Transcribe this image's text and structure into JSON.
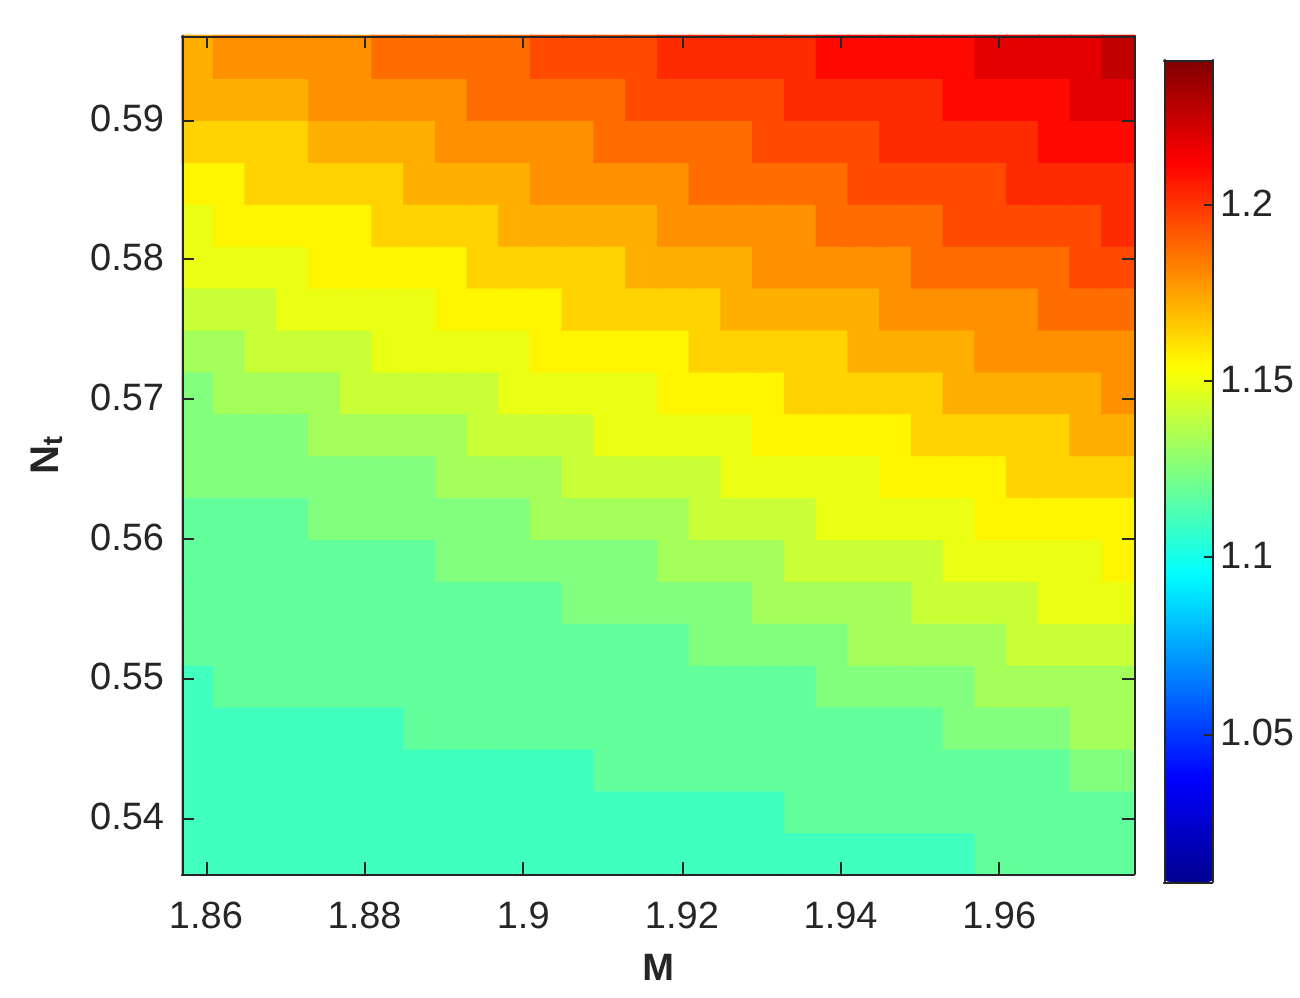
{
  "chart_data": {
    "type": "scatter",
    "xlabel": "M",
    "ylabel": "N$_{t}$",
    "x": [
      1.859,
      1.863,
      1.867,
      1.871,
      1.875,
      1.879,
      1.883,
      1.887,
      1.891,
      1.895,
      1.899,
      1.903,
      1.907,
      1.911,
      1.915,
      1.919,
      1.923,
      1.927,
      1.931,
      1.935,
      1.939,
      1.943,
      1.947,
      1.951,
      1.955,
      1.959,
      1.963,
      1.967,
      1.971,
      1.975,
      1.859,
      1.863,
      1.867,
      1.871,
      1.875,
      1.879,
      1.883,
      1.887,
      1.891,
      1.895,
      1.899,
      1.903,
      1.907,
      1.911,
      1.915,
      1.919,
      1.923,
      1.927,
      1.931,
      1.935,
      1.939,
      1.943,
      1.947,
      1.951,
      1.955,
      1.959,
      1.963,
      1.967,
      1.971,
      1.975,
      1.859,
      1.863,
      1.867,
      1.871,
      1.875,
      1.879,
      1.883,
      1.887,
      1.891,
      1.895,
      1.899,
      1.903,
      1.907,
      1.911,
      1.915,
      1.919,
      1.923,
      1.927,
      1.931,
      1.935,
      1.939,
      1.943,
      1.947,
      1.951,
      1.955,
      1.959,
      1.963,
      1.967,
      1.971,
      1.975,
      1.859,
      1.863,
      1.867,
      1.871,
      1.875,
      1.879,
      1.883,
      1.887,
      1.891,
      1.895,
      1.899,
      1.903,
      1.907,
      1.911,
      1.915,
      1.919,
      1.923,
      1.927,
      1.931,
      1.935,
      1.939,
      1.943,
      1.947,
      1.951,
      1.955,
      1.959,
      1.963,
      1.967,
      1.971,
      1.975,
      1.859,
      1.863,
      1.867,
      1.871,
      1.875,
      1.879,
      1.883,
      1.887,
      1.891,
      1.895,
      1.899,
      1.903,
      1.907,
      1.911,
      1.915,
      1.919,
      1.923,
      1.927,
      1.931,
      1.935,
      1.939,
      1.943,
      1.947,
      1.951,
      1.955,
      1.959,
      1.963,
      1.967,
      1.971,
      1.975,
      1.859,
      1.863,
      1.867,
      1.871,
      1.875,
      1.879,
      1.883,
      1.887,
      1.891,
      1.895,
      1.899,
      1.903,
      1.907,
      1.911,
      1.915,
      1.919,
      1.923,
      1.927,
      1.931,
      1.935,
      1.939,
      1.943,
      1.947,
      1.951,
      1.955,
      1.959,
      1.963,
      1.967,
      1.971,
      1.975,
      1.859,
      1.863,
      1.867,
      1.871,
      1.875,
      1.879,
      1.883,
      1.887,
      1.891,
      1.895,
      1.899,
      1.903,
      1.907,
      1.911,
      1.915,
      1.919,
      1.923,
      1.927,
      1.931,
      1.935,
      1.939,
      1.943,
      1.947,
      1.951,
      1.955,
      1.959,
      1.963,
      1.967,
      1.971,
      1.975,
      1.859,
      1.863,
      1.867,
      1.871,
      1.875,
      1.879,
      1.883,
      1.887,
      1.891,
      1.895,
      1.899,
      1.903,
      1.907,
      1.911,
      1.915,
      1.919,
      1.923,
      1.927,
      1.931,
      1.935,
      1.939,
      1.943,
      1.947,
      1.951,
      1.955,
      1.959,
      1.963,
      1.967,
      1.971,
      1.975,
      1.859,
      1.863,
      1.867,
      1.871,
      1.875,
      1.879,
      1.883,
      1.887,
      1.891,
      1.895,
      1.899,
      1.903,
      1.907,
      1.911,
      1.915,
      1.919,
      1.923,
      1.927,
      1.931,
      1.935,
      1.939,
      1.943,
      1.947,
      1.951,
      1.955,
      1.959,
      1.963,
      1.967,
      1.971,
      1.975,
      1.859,
      1.863,
      1.867,
      1.871,
      1.875,
      1.879,
      1.883,
      1.887,
      1.891,
      1.895,
      1.899,
      1.903,
      1.907,
      1.911,
      1.915,
      1.919,
      1.923,
      1.927,
      1.931,
      1.935,
      1.939,
      1.943,
      1.947,
      1.951,
      1.955,
      1.959,
      1.963,
      1.967,
      1.971,
      1.975,
      1.859,
      1.863,
      1.867,
      1.871,
      1.875,
      1.879,
      1.883,
      1.887,
      1.891,
      1.895,
      1.899,
      1.903,
      1.907,
      1.911,
      1.915,
      1.919,
      1.923,
      1.927,
      1.931,
      1.935,
      1.939,
      1.943,
      1.947,
      1.951,
      1.955,
      1.959,
      1.963,
      1.967,
      1.971,
      1.975,
      1.859,
      1.863,
      1.867,
      1.871,
      1.875,
      1.879,
      1.883,
      1.887,
      1.891,
      1.895,
      1.899,
      1.903,
      1.907,
      1.911,
      1.915,
      1.919,
      1.923,
      1.927,
      1.931,
      1.935,
      1.939,
      1.943,
      1.947,
      1.951,
      1.955,
      1.959,
      1.963,
      1.967,
      1.971,
      1.975,
      1.859,
      1.863,
      1.867,
      1.871,
      1.875,
      1.879,
      1.883,
      1.887,
      1.891,
      1.895,
      1.899,
      1.903,
      1.907,
      1.911,
      1.915,
      1.919,
      1.923,
      1.927,
      1.931,
      1.935,
      1.939,
      1.943,
      1.947,
      1.951,
      1.955,
      1.959,
      1.963,
      1.967,
      1.971,
      1.975,
      1.859,
      1.863,
      1.867,
      1.871,
      1.875,
      1.879,
      1.883,
      1.887,
      1.891,
      1.895,
      1.899,
      1.903,
      1.907,
      1.911,
      1.915,
      1.919,
      1.923,
      1.927,
      1.931,
      1.935,
      1.939,
      1.943,
      1.947,
      1.951,
      1.955,
      1.959,
      1.963,
      1.967,
      1.971,
      1.975,
      1.859,
      1.863,
      1.867,
      1.871,
      1.875,
      1.879,
      1.883,
      1.887,
      1.891,
      1.895,
      1.899,
      1.903,
      1.907,
      1.911,
      1.915,
      1.919,
      1.923,
      1.927,
      1.931,
      1.935,
      1.939,
      1.943,
      1.947,
      1.951,
      1.955,
      1.959,
      1.963,
      1.967,
      1.971,
      1.975,
      1.859,
      1.863,
      1.867,
      1.871,
      1.875,
      1.879,
      1.883,
      1.887,
      1.891,
      1.895,
      1.899,
      1.903,
      1.907,
      1.911,
      1.915,
      1.919,
      1.923,
      1.927,
      1.931,
      1.935,
      1.939,
      1.943,
      1.947,
      1.951,
      1.955,
      1.959,
      1.963,
      1.967,
      1.971,
      1.975,
      1.859,
      1.863,
      1.867,
      1.871,
      1.875,
      1.879,
      1.883,
      1.887,
      1.891,
      1.895,
      1.899,
      1.903,
      1.907,
      1.911,
      1.915,
      1.919,
      1.923,
      1.927,
      1.931,
      1.935,
      1.939,
      1.943,
      1.947,
      1.951,
      1.955,
      1.959,
      1.963,
      1.967,
      1.971,
      1.975,
      1.859,
      1.863,
      1.867,
      1.871,
      1.875,
      1.879,
      1.883,
      1.887,
      1.891,
      1.895,
      1.899,
      1.903,
      1.907,
      1.911,
      1.915,
      1.919,
      1.923,
      1.927,
      1.931,
      1.935,
      1.939,
      1.943,
      1.947,
      1.951,
      1.955,
      1.959,
      1.963,
      1.967,
      1.971,
      1.975,
      1.859,
      1.863,
      1.867,
      1.871,
      1.875,
      1.879,
      1.883,
      1.887,
      1.891,
      1.895,
      1.899,
      1.903,
      1.907,
      1.911,
      1.915,
      1.919,
      1.923,
      1.927,
      1.931,
      1.935,
      1.939,
      1.943,
      1.947,
      1.951,
      1.955,
      1.959,
      1.963,
      1.967,
      1.971,
      1.975,
      1.859,
      1.863,
      1.867,
      1.871,
      1.875,
      1.879,
      1.883,
      1.887,
      1.891,
      1.895,
      1.899,
      1.903,
      1.907,
      1.911,
      1.915,
      1.919,
      1.923,
      1.927,
      1.931,
      1.935,
      1.939,
      1.943,
      1.947,
      1.951,
      1.955,
      1.959,
      1.963,
      1.967,
      1.971,
      1.975
    ],
    "values": [
      0.5375,
      0.5375,
      0.5375,
      0.5375,
      0.5375,
      0.5375,
      0.5375,
      0.5375,
      0.5375,
      0.5375,
      0.5375,
      0.5375,
      0.5375,
      0.5375,
      0.5375,
      0.5375,
      0.5375,
      0.5375,
      0.5375,
      0.5375,
      0.5375,
      0.5375,
      0.5375,
      0.5375,
      0.5375,
      0.5375,
      0.5375,
      0.5375,
      0.5375,
      0.5375,
      0.5405,
      0.5405,
      0.5405,
      0.5405,
      0.5405,
      0.5405,
      0.5405,
      0.5405,
      0.5405,
      0.5405,
      0.5405,
      0.5405,
      0.5405,
      0.5405,
      0.5405,
      0.5405,
      0.5405,
      0.5405,
      0.5405,
      0.5405,
      0.5405,
      0.5405,
      0.5405,
      0.5405,
      0.5405,
      0.5405,
      0.5405,
      0.5405,
      0.5405,
      0.5405,
      0.5435,
      0.5435,
      0.5435,
      0.5435,
      0.5435,
      0.5435,
      0.5435,
      0.5435,
      0.5435,
      0.5435,
      0.5435,
      0.5435,
      0.5435,
      0.5435,
      0.5435,
      0.5435,
      0.5435,
      0.5435,
      0.5435,
      0.5435,
      0.5435,
      0.5435,
      0.5435,
      0.5435,
      0.5435,
      0.5435,
      0.5435,
      0.5435,
      0.5435,
      0.5435,
      0.5465,
      0.5465,
      0.5465,
      0.5465,
      0.5465,
      0.5465,
      0.5465,
      0.5465,
      0.5465,
      0.5465,
      0.5465,
      0.5465,
      0.5465,
      0.5465,
      0.5465,
      0.5465,
      0.5465,
      0.5465,
      0.5465,
      0.5465,
      0.5465,
      0.5465,
      0.5465,
      0.5465,
      0.5465,
      0.5465,
      0.5465,
      0.5465,
      0.5465,
      0.5465,
      0.5495,
      0.5495,
      0.5495,
      0.5495,
      0.5495,
      0.5495,
      0.5495,
      0.5495,
      0.5495,
      0.5495,
      0.5495,
      0.5495,
      0.5495,
      0.5495,
      0.5495,
      0.5495,
      0.5495,
      0.5495,
      0.5495,
      0.5495,
      0.5495,
      0.5495,
      0.5495,
      0.5495,
      0.5495,
      0.5495,
      0.5495,
      0.5495,
      0.5495,
      0.5495,
      0.5525,
      0.5525,
      0.5525,
      0.5525,
      0.5525,
      0.5525,
      0.5525,
      0.5525,
      0.5525,
      0.5525,
      0.5525,
      0.5525,
      0.5525,
      0.5525,
      0.5525,
      0.5525,
      0.5525,
      0.5525,
      0.5525,
      0.5525,
      0.5525,
      0.5525,
      0.5525,
      0.5525,
      0.5525,
      0.5525,
      0.5525,
      0.5525,
      0.5525,
      0.5525,
      0.5555,
      0.5555,
      0.5555,
      0.5555,
      0.5555,
      0.5555,
      0.5555,
      0.5555,
      0.5555,
      0.5555,
      0.5555,
      0.5555,
      0.5555,
      0.5555,
      0.5555,
      0.5555,
      0.5555,
      0.5555,
      0.5555,
      0.5555,
      0.5555,
      0.5555,
      0.5555,
      0.5555,
      0.5555,
      0.5555,
      0.5555,
      0.5555,
      0.5555,
      0.5555,
      0.5585,
      0.5585,
      0.5585,
      0.5585,
      0.5585,
      0.5585,
      0.5585,
      0.5585,
      0.5585,
      0.5585,
      0.5585,
      0.5585,
      0.5585,
      0.5585,
      0.5585,
      0.5585,
      0.5585,
      0.5585,
      0.5585,
      0.5585,
      0.5585,
      0.5585,
      0.5585,
      0.5585,
      0.5585,
      0.5585,
      0.5585,
      0.5585,
      0.5585,
      0.5585,
      0.5615,
      0.5615,
      0.5615,
      0.5615,
      0.5615,
      0.5615,
      0.5615,
      0.5615,
      0.5615,
      0.5615,
      0.5615,
      0.5615,
      0.5615,
      0.5615,
      0.5615,
      0.5615,
      0.5615,
      0.5615,
      0.5615,
      0.5615,
      0.5615,
      0.5615,
      0.5615,
      0.5615,
      0.5615,
      0.5615,
      0.5615,
      0.5615,
      0.5615,
      0.5615,
      0.5645,
      0.5645,
      0.5645,
      0.5645,
      0.5645,
      0.5645,
      0.5645,
      0.5645,
      0.5645,
      0.5645,
      0.5645,
      0.5645,
      0.5645,
      0.5645,
      0.5645,
      0.5645,
      0.5645,
      0.5645,
      0.5645,
      0.5645,
      0.5645,
      0.5645,
      0.5645,
      0.5645,
      0.5645,
      0.5645,
      0.5645,
      0.5645,
      0.5645,
      0.5645,
      0.5675,
      0.5675,
      0.5675,
      0.5675,
      0.5675,
      0.5675,
      0.5675,
      0.5675,
      0.5675,
      0.5675,
      0.5675,
      0.5675,
      0.5675,
      0.5675,
      0.5675,
      0.5675,
      0.5675,
      0.5675,
      0.5675,
      0.5675,
      0.5675,
      0.5675,
      0.5675,
      0.5675,
      0.5675,
      0.5675,
      0.5675,
      0.5675,
      0.5675,
      0.5675,
      0.5705,
      0.5705,
      0.5705,
      0.5705,
      0.5705,
      0.5705,
      0.5705,
      0.5705,
      0.5705,
      0.5705,
      0.5705,
      0.5705,
      0.5705,
      0.5705,
      0.5705,
      0.5705,
      0.5705,
      0.5705,
      0.5705,
      0.5705,
      0.5705,
      0.5705,
      0.5705,
      0.5705,
      0.5705,
      0.5705,
      0.5705,
      0.5705,
      0.5705,
      0.5705,
      0.5735,
      0.5735,
      0.5735,
      0.5735,
      0.5735,
      0.5735,
      0.5735,
      0.5735,
      0.5735,
      0.5735,
      0.5735,
      0.5735,
      0.5735,
      0.5735,
      0.5735,
      0.5735,
      0.5735,
      0.5735,
      0.5735,
      0.5735,
      0.5735,
      0.5735,
      0.5735,
      0.5735,
      0.5735,
      0.5735,
      0.5735,
      0.5735,
      0.5735,
      0.5735,
      0.5765,
      0.5765,
      0.5765,
      0.5765,
      0.5765,
      0.5765,
      0.5765,
      0.5765,
      0.5765,
      0.5765,
      0.5765,
      0.5765,
      0.5765,
      0.5765,
      0.5765,
      0.5765,
      0.5765,
      0.5765,
      0.5765,
      0.5765,
      0.5765,
      0.5765,
      0.5765,
      0.5765,
      0.5765,
      0.5765,
      0.5765,
      0.5765,
      0.5765,
      0.5765,
      0.5795,
      0.5795,
      0.5795,
      0.5795,
      0.5795,
      0.5795,
      0.5795,
      0.5795,
      0.5795,
      0.5795,
      0.5795,
      0.5795,
      0.5795,
      0.5795,
      0.5795,
      0.5795,
      0.5795,
      0.5795,
      0.5795,
      0.5795,
      0.5795,
      0.5795,
      0.5795,
      0.5795,
      0.5795,
      0.5795,
      0.5795,
      0.5795,
      0.5795,
      0.5795,
      0.5825,
      0.5825,
      0.5825,
      0.5825,
      0.5825,
      0.5825,
      0.5825,
      0.5825,
      0.5825,
      0.5825,
      0.5825,
      0.5825,
      0.5825,
      0.5825,
      0.5825,
      0.5825,
      0.5825,
      0.5825,
      0.5825,
      0.5825,
      0.5825,
      0.5825,
      0.5825,
      0.5825,
      0.5825,
      0.5825,
      0.5825,
      0.5825,
      0.5825,
      0.5825,
      0.5855,
      0.5855,
      0.5855,
      0.5855,
      0.5855,
      0.5855,
      0.5855,
      0.5855,
      0.5855,
      0.5855,
      0.5855,
      0.5855,
      0.5855,
      0.5855,
      0.5855,
      0.5855,
      0.5855,
      0.5855,
      0.5855,
      0.5855,
      0.5855,
      0.5855,
      0.5855,
      0.5855,
      0.5855,
      0.5855,
      0.5855,
      0.5855,
      0.5855,
      0.5855,
      0.5885,
      0.5885,
      0.5885,
      0.5885,
      0.5885,
      0.5885,
      0.5885,
      0.5885,
      0.5885,
      0.5885,
      0.5885,
      0.5885,
      0.5885,
      0.5885,
      0.5885,
      0.5885,
      0.5885,
      0.5885,
      0.5885,
      0.5885,
      0.5885,
      0.5885,
      0.5885,
      0.5885,
      0.5885,
      0.5885,
      0.5885,
      0.5885,
      0.5885,
      0.5885,
      0.5915,
      0.5915,
      0.5915,
      0.5915,
      0.5915,
      0.5915,
      0.5915,
      0.5915,
      0.5915,
      0.5915,
      0.5915,
      0.5915,
      0.5915,
      0.5915,
      0.5915,
      0.5915,
      0.5915,
      0.5915,
      0.5915,
      0.5915,
      0.5915,
      0.5915,
      0.5915,
      0.5915,
      0.5915,
      0.5915,
      0.5915,
      0.5915,
      0.5915,
      0.5915,
      0.5945,
      0.5945,
      0.5945,
      0.5945,
      0.5945,
      0.5945,
      0.5945,
      0.5945,
      0.5945,
      0.5945,
      0.5945,
      0.5945,
      0.5945,
      0.5945,
      0.5945,
      0.5945,
      0.5945,
      0.5945,
      0.5945,
      0.5945,
      0.5945,
      0.5945,
      0.5945,
      0.5945,
      0.5945,
      0.5945,
      0.5945,
      0.5945,
      0.5945,
      0.5945
    ],
    "cvalues": [
      1.11,
      1.11,
      1.11,
      1.11,
      1.11,
      1.11,
      1.11,
      1.11,
      1.11,
      1.11,
      1.11,
      1.11,
      1.11,
      1.11,
      1.11,
      1.11,
      1.11,
      1.11,
      1.11,
      1.11,
      1.11,
      1.11,
      1.11,
      1.11,
      1.11,
      1.118,
      1.118,
      1.118,
      1.118,
      1.118,
      1.11,
      1.11,
      1.11,
      1.11,
      1.11,
      1.11,
      1.11,
      1.11,
      1.11,
      1.11,
      1.11,
      1.11,
      1.11,
      1.11,
      1.11,
      1.11,
      1.11,
      1.11,
      1.11,
      1.118,
      1.118,
      1.118,
      1.118,
      1.118,
      1.118,
      1.118,
      1.118,
      1.118,
      1.118,
      1.118,
      1.11,
      1.11,
      1.11,
      1.11,
      1.11,
      1.11,
      1.11,
      1.11,
      1.11,
      1.11,
      1.11,
      1.11,
      1.11,
      1.118,
      1.118,
      1.118,
      1.118,
      1.118,
      1.118,
      1.118,
      1.118,
      1.118,
      1.118,
      1.118,
      1.118,
      1.118,
      1.118,
      1.118,
      1.125,
      1.125,
      1.11,
      1.11,
      1.11,
      1.11,
      1.11,
      1.11,
      1.11,
      1.118,
      1.118,
      1.118,
      1.118,
      1.118,
      1.118,
      1.118,
      1.118,
      1.118,
      1.118,
      1.118,
      1.118,
      1.118,
      1.118,
      1.118,
      1.118,
      1.118,
      1.125,
      1.125,
      1.125,
      1.125,
      1.133,
      1.133,
      1.11,
      1.118,
      1.118,
      1.118,
      1.118,
      1.118,
      1.118,
      1.118,
      1.118,
      1.118,
      1.118,
      1.118,
      1.118,
      1.118,
      1.118,
      1.118,
      1.118,
      1.118,
      1.118,
      1.118,
      1.125,
      1.125,
      1.125,
      1.125,
      1.125,
      1.133,
      1.133,
      1.133,
      1.133,
      1.133,
      1.118,
      1.118,
      1.118,
      1.118,
      1.118,
      1.118,
      1.118,
      1.118,
      1.118,
      1.118,
      1.118,
      1.118,
      1.118,
      1.118,
      1.118,
      1.118,
      1.125,
      1.125,
      1.125,
      1.125,
      1.125,
      1.133,
      1.133,
      1.133,
      1.133,
      1.133,
      1.141,
      1.141,
      1.141,
      1.141,
      1.118,
      1.118,
      1.118,
      1.118,
      1.118,
      1.118,
      1.118,
      1.118,
      1.118,
      1.118,
      1.118,
      1.118,
      1.125,
      1.125,
      1.125,
      1.125,
      1.125,
      1.125,
      1.133,
      1.133,
      1.133,
      1.133,
      1.133,
      1.141,
      1.141,
      1.141,
      1.141,
      1.149,
      1.149,
      1.149,
      1.118,
      1.118,
      1.118,
      1.118,
      1.118,
      1.118,
      1.118,
      1.118,
      1.125,
      1.125,
      1.125,
      1.125,
      1.125,
      1.125,
      1.125,
      1.133,
      1.133,
      1.133,
      1.133,
      1.141,
      1.141,
      1.141,
      1.141,
      1.141,
      1.149,
      1.149,
      1.149,
      1.149,
      1.149,
      1.156,
      1.118,
      1.118,
      1.118,
      1.118,
      1.125,
      1.125,
      1.125,
      1.125,
      1.125,
      1.125,
      1.125,
      1.133,
      1.133,
      1.133,
      1.133,
      1.133,
      1.141,
      1.141,
      1.141,
      1.141,
      1.149,
      1.149,
      1.149,
      1.149,
      1.149,
      1.156,
      1.156,
      1.156,
      1.156,
      1.156,
      1.125,
      1.125,
      1.125,
      1.125,
      1.125,
      1.125,
      1.125,
      1.125,
      1.133,
      1.133,
      1.133,
      1.133,
      1.141,
      1.141,
      1.141,
      1.141,
      1.141,
      1.149,
      1.149,
      1.149,
      1.149,
      1.149,
      1.156,
      1.156,
      1.156,
      1.156,
      1.164,
      1.164,
      1.164,
      1.164,
      1.125,
      1.125,
      1.125,
      1.125,
      1.133,
      1.133,
      1.133,
      1.133,
      1.133,
      1.141,
      1.141,
      1.141,
      1.141,
      1.149,
      1.149,
      1.149,
      1.149,
      1.149,
      1.156,
      1.156,
      1.156,
      1.156,
      1.156,
      1.164,
      1.164,
      1.164,
      1.164,
      1.164,
      1.172,
      1.172,
      1.125,
      1.133,
      1.133,
      1.133,
      1.133,
      1.141,
      1.141,
      1.141,
      1.141,
      1.141,
      1.149,
      1.149,
      1.149,
      1.149,
      1.149,
      1.156,
      1.156,
      1.156,
      1.156,
      1.164,
      1.164,
      1.164,
      1.164,
      1.164,
      1.172,
      1.172,
      1.172,
      1.172,
      1.172,
      1.179,
      1.133,
      1.133,
      1.141,
      1.141,
      1.141,
      1.141,
      1.149,
      1.149,
      1.149,
      1.149,
      1.149,
      1.156,
      1.156,
      1.156,
      1.156,
      1.156,
      1.164,
      1.164,
      1.164,
      1.164,
      1.164,
      1.172,
      1.172,
      1.172,
      1.172,
      1.179,
      1.179,
      1.179,
      1.179,
      1.179,
      1.141,
      1.141,
      1.141,
      1.149,
      1.149,
      1.149,
      1.149,
      1.149,
      1.156,
      1.156,
      1.156,
      1.156,
      1.164,
      1.164,
      1.164,
      1.164,
      1.164,
      1.172,
      1.172,
      1.172,
      1.172,
      1.172,
      1.179,
      1.179,
      1.179,
      1.179,
      1.179,
      1.187,
      1.187,
      1.187,
      1.149,
      1.149,
      1.149,
      1.149,
      1.156,
      1.156,
      1.156,
      1.156,
      1.156,
      1.164,
      1.164,
      1.164,
      1.164,
      1.164,
      1.172,
      1.172,
      1.172,
      1.172,
      1.179,
      1.179,
      1.179,
      1.179,
      1.179,
      1.187,
      1.187,
      1.187,
      1.187,
      1.187,
      1.195,
      1.195,
      1.149,
      1.156,
      1.156,
      1.156,
      1.156,
      1.156,
      1.164,
      1.164,
      1.164,
      1.164,
      1.172,
      1.172,
      1.172,
      1.172,
      1.172,
      1.179,
      1.179,
      1.179,
      1.179,
      1.179,
      1.187,
      1.187,
      1.187,
      1.187,
      1.195,
      1.195,
      1.195,
      1.195,
      1.195,
      1.202,
      1.156,
      1.156,
      1.164,
      1.164,
      1.164,
      1.164,
      1.164,
      1.172,
      1.172,
      1.172,
      1.172,
      1.179,
      1.179,
      1.179,
      1.179,
      1.179,
      1.187,
      1.187,
      1.187,
      1.187,
      1.187,
      1.195,
      1.195,
      1.195,
      1.195,
      1.195,
      1.202,
      1.202,
      1.202,
      1.202,
      1.164,
      1.164,
      1.164,
      1.164,
      1.172,
      1.172,
      1.172,
      1.172,
      1.179,
      1.179,
      1.179,
      1.179,
      1.179,
      1.187,
      1.187,
      1.187,
      1.187,
      1.187,
      1.195,
      1.195,
      1.195,
      1.195,
      1.202,
      1.202,
      1.202,
      1.202,
      1.202,
      1.21,
      1.21,
      1.21,
      1.172,
      1.172,
      1.172,
      1.172,
      1.179,
      1.179,
      1.179,
      1.179,
      1.179,
      1.187,
      1.187,
      1.187,
      1.187,
      1.187,
      1.195,
      1.195,
      1.195,
      1.195,
      1.195,
      1.202,
      1.202,
      1.202,
      1.202,
      1.202,
      1.21,
      1.21,
      1.21,
      1.21,
      1.218,
      1.218,
      1.172,
      1.179,
      1.179,
      1.179,
      1.179,
      1.179,
      1.187,
      1.187,
      1.187,
      1.187,
      1.187,
      1.195,
      1.195,
      1.195,
      1.195,
      1.202,
      1.202,
      1.202,
      1.202,
      1.202,
      1.21,
      1.21,
      1.21,
      1.21,
      1.21,
      1.218,
      1.218,
      1.218,
      1.218,
      1.226
    ],
    "xlim": [
      1.857,
      1.977
    ],
    "ylim": [
      0.536,
      0.596
    ],
    "xticks": [
      1.86,
      1.88,
      1.9,
      1.92,
      1.94,
      1.96
    ],
    "yticks": [
      0.54,
      0.55,
      0.56,
      0.57,
      0.58,
      0.59
    ],
    "clim": [
      1.008,
      1.241
    ],
    "cticks": [
      1.05,
      1.1,
      1.15,
      1.2
    ],
    "marker": "square"
  }
}
